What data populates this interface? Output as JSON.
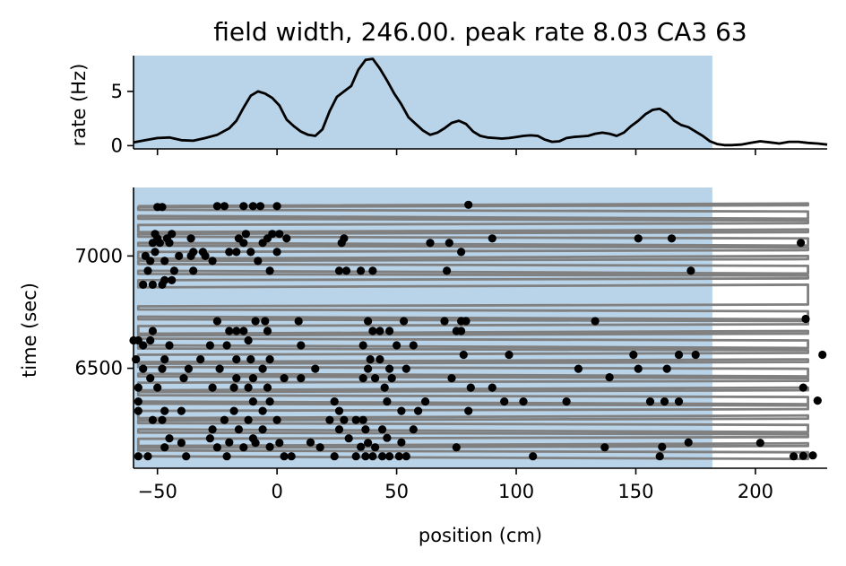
{
  "chart_data": [
    {
      "type": "line",
      "panel": "rate",
      "title": "field width, 246.00. peak rate 8.03 CA3 63",
      "xlabel": "",
      "ylabel": "rate (Hz)",
      "xlim": [
        -60,
        230
      ],
      "ylim": [
        -0.3,
        8.3
      ],
      "yticks": [
        0,
        5
      ],
      "xticks": [
        -50,
        0,
        50,
        100,
        150,
        200
      ],
      "field_span": [
        -60,
        182
      ],
      "field_color": "#b9d3e8",
      "line_color": "#000000",
      "series": [
        {
          "name": "rate",
          "x": [
            -60,
            -55,
            -50,
            -45,
            -40,
            -35,
            -30,
            -25,
            -20,
            -17,
            -14,
            -11,
            -8,
            -5,
            -2,
            1,
            4,
            7,
            10,
            13,
            16,
            19,
            22,
            25,
            28,
            31,
            34,
            37,
            40,
            43,
            46,
            49,
            52,
            55,
            58,
            61,
            64,
            67,
            70,
            73,
            76,
            79,
            82,
            85,
            88,
            91,
            94,
            97,
            100,
            103,
            106,
            109,
            112,
            115,
            118,
            121,
            124,
            127,
            130,
            133,
            136,
            139,
            142,
            145,
            148,
            151,
            154,
            157,
            160,
            163,
            166,
            169,
            172,
            175,
            178,
            181,
            184,
            187,
            190,
            194,
            198,
            202,
            206,
            210,
            214,
            218,
            222,
            226,
            230
          ],
          "values": [
            0.3,
            0.5,
            0.7,
            0.75,
            0.5,
            0.45,
            0.7,
            1.0,
            1.6,
            2.3,
            3.5,
            4.6,
            5.0,
            4.8,
            4.4,
            3.7,
            2.4,
            1.8,
            1.3,
            1.0,
            0.9,
            1.5,
            3.2,
            4.5,
            5.0,
            5.5,
            7.0,
            7.9,
            8.0,
            7.1,
            6.0,
            4.8,
            3.8,
            2.6,
            2.0,
            1.4,
            1.0,
            1.2,
            1.6,
            2.1,
            2.3,
            2.0,
            1.3,
            0.9,
            0.75,
            0.7,
            0.65,
            0.7,
            0.8,
            0.9,
            0.95,
            0.9,
            0.55,
            0.35,
            0.4,
            0.7,
            0.8,
            0.85,
            0.9,
            1.1,
            1.2,
            1.1,
            0.9,
            1.2,
            1.8,
            2.3,
            2.9,
            3.3,
            3.4,
            3.0,
            2.3,
            1.9,
            1.7,
            1.3,
            0.9,
            0.4,
            0.15,
            0.05,
            0.05,
            0.1,
            0.25,
            0.4,
            0.3,
            0.2,
            0.35,
            0.35,
            0.25,
            0.2,
            0.1
          ]
        }
      ]
    },
    {
      "type": "scatter",
      "panel": "raster",
      "title": "",
      "xlabel": "position (cm)",
      "ylabel": "time (sec)",
      "xlim": [
        -60,
        230
      ],
      "ylim": [
        6055,
        7305
      ],
      "xticks": [
        -50,
        0,
        50,
        100,
        150,
        200
      ],
      "xtick_labels": [
        "−50",
        "0",
        "50",
        "100",
        "150",
        "200"
      ],
      "yticks": [
        6500,
        7000
      ],
      "field_span": [
        -60,
        182
      ],
      "field_color": "#b9d3e8",
      "trajectory_color": "#808080",
      "spike_color": "#000000",
      "lap_times": [
        6108,
        6126,
        6146,
        6166,
        6186,
        6206,
        6228,
        6248,
        6268,
        6290,
        6310,
        6334,
        6352,
        6372,
        6394,
        6414,
        6436,
        6456,
        6476,
        6498,
        6520,
        6540,
        6560,
        6580,
        6602,
        6624,
        6646,
        6666,
        6688,
        6710,
        6730,
        6754,
        6776,
        6872,
        6892,
        6912,
        6934,
        6956,
        6978,
        7000,
        7018,
        7038,
        7058,
        7078,
        7098,
        7118,
        7138,
        7158,
        7178,
        7198,
        7218,
        7234
      ],
      "spikes": [
        {
          "x": -58,
          "y": 6108
        },
        {
          "x": -54,
          "y": 6108
        },
        {
          "x": -38,
          "y": 6108
        },
        {
          "x": -21,
          "y": 6108
        },
        {
          "x": 3,
          "y": 6108
        },
        {
          "x": 6,
          "y": 6108
        },
        {
          "x": 24,
          "y": 6108
        },
        {
          "x": 33,
          "y": 6108
        },
        {
          "x": 37,
          "y": 6108
        },
        {
          "x": 40,
          "y": 6108
        },
        {
          "x": 44,
          "y": 6108
        },
        {
          "x": 47,
          "y": 6108
        },
        {
          "x": 51,
          "y": 6108
        },
        {
          "x": 54,
          "y": 6108
        },
        {
          "x": 107,
          "y": 6108
        },
        {
          "x": 160,
          "y": 6108
        },
        {
          "x": 216,
          "y": 6108
        },
        {
          "x": 220,
          "y": 6110
        },
        {
          "x": 224,
          "y": 6112
        },
        {
          "x": -47,
          "y": 6148
        },
        {
          "x": -25,
          "y": 6148
        },
        {
          "x": -14,
          "y": 6148
        },
        {
          "x": -3,
          "y": 6150
        },
        {
          "x": 18,
          "y": 6148
        },
        {
          "x": 35,
          "y": 6150
        },
        {
          "x": 41,
          "y": 6148
        },
        {
          "x": 75,
          "y": 6148
        },
        {
          "x": 137,
          "y": 6148
        },
        {
          "x": 161,
          "y": 6150
        },
        {
          "x": -40,
          "y": 6168
        },
        {
          "x": -20,
          "y": 6170
        },
        {
          "x": -9,
          "y": 6168
        },
        {
          "x": 1,
          "y": 6168
        },
        {
          "x": 14,
          "y": 6170
        },
        {
          "x": 38,
          "y": 6168
        },
        {
          "x": 52,
          "y": 6170
        },
        {
          "x": 172,
          "y": 6170
        },
        {
          "x": 202,
          "y": 6168
        },
        {
          "x": -45,
          "y": 6188
        },
        {
          "x": -28,
          "y": 6188
        },
        {
          "x": -10,
          "y": 6188
        },
        {
          "x": 30,
          "y": 6188
        },
        {
          "x": 46,
          "y": 6190
        },
        {
          "x": -27,
          "y": 6228
        },
        {
          "x": -16,
          "y": 6228
        },
        {
          "x": -6,
          "y": 6228
        },
        {
          "x": 26,
          "y": 6228
        },
        {
          "x": 37,
          "y": 6228
        },
        {
          "x": 44,
          "y": 6228
        },
        {
          "x": 57,
          "y": 6228
        },
        {
          "x": -52,
          "y": 6270
        },
        {
          "x": -48,
          "y": 6270
        },
        {
          "x": -22,
          "y": 6270
        },
        {
          "x": -12,
          "y": 6270
        },
        {
          "x": 0,
          "y": 6270
        },
        {
          "x": 22,
          "y": 6270
        },
        {
          "x": 28,
          "y": 6270
        },
        {
          "x": 33,
          "y": 6270
        },
        {
          "x": 36,
          "y": 6270
        },
        {
          "x": -58,
          "y": 6310
        },
        {
          "x": -47,
          "y": 6310
        },
        {
          "x": -40,
          "y": 6310
        },
        {
          "x": -18,
          "y": 6310
        },
        {
          "x": -6,
          "y": 6310
        },
        {
          "x": 26,
          "y": 6310
        },
        {
          "x": 52,
          "y": 6310
        },
        {
          "x": 59,
          "y": 6310
        },
        {
          "x": 80,
          "y": 6310
        },
        {
          "x": -58,
          "y": 6352
        },
        {
          "x": -10,
          "y": 6352
        },
        {
          "x": -3,
          "y": 6352
        },
        {
          "x": 24,
          "y": 6352
        },
        {
          "x": 46,
          "y": 6352
        },
        {
          "x": 62,
          "y": 6352
        },
        {
          "x": 95,
          "y": 6352
        },
        {
          "x": 103,
          "y": 6352
        },
        {
          "x": 121,
          "y": 6352
        },
        {
          "x": 156,
          "y": 6352
        },
        {
          "x": 162,
          "y": 6352
        },
        {
          "x": 168,
          "y": 6352
        },
        {
          "x": 226,
          "y": 6356
        },
        {
          "x": -58,
          "y": 6414
        },
        {
          "x": -50,
          "y": 6414
        },
        {
          "x": -27,
          "y": 6414
        },
        {
          "x": -18,
          "y": 6414
        },
        {
          "x": -12,
          "y": 6414
        },
        {
          "x": -4,
          "y": 6414
        },
        {
          "x": 45,
          "y": 6414
        },
        {
          "x": 81,
          "y": 6414
        },
        {
          "x": 90,
          "y": 6414
        },
        {
          "x": 220,
          "y": 6414
        },
        {
          "x": -53,
          "y": 6456
        },
        {
          "x": -39,
          "y": 6456
        },
        {
          "x": -17,
          "y": 6456
        },
        {
          "x": -10,
          "y": 6456
        },
        {
          "x": 3,
          "y": 6456
        },
        {
          "x": 10,
          "y": 6456
        },
        {
          "x": 36,
          "y": 6456
        },
        {
          "x": 41,
          "y": 6456
        },
        {
          "x": 48,
          "y": 6456
        },
        {
          "x": 73,
          "y": 6456
        },
        {
          "x": 139,
          "y": 6460
        },
        {
          "x": -56,
          "y": 6498
        },
        {
          "x": -48,
          "y": 6498
        },
        {
          "x": -37,
          "y": 6498
        },
        {
          "x": -24,
          "y": 6498
        },
        {
          "x": -6,
          "y": 6498
        },
        {
          "x": 16,
          "y": 6498
        },
        {
          "x": 38,
          "y": 6498
        },
        {
          "x": 47,
          "y": 6498
        },
        {
          "x": 54,
          "y": 6498
        },
        {
          "x": 126,
          "y": 6498
        },
        {
          "x": 151,
          "y": 6498
        },
        {
          "x": 163,
          "y": 6498
        },
        {
          "x": -59,
          "y": 6540
        },
        {
          "x": -47,
          "y": 6540
        },
        {
          "x": -32,
          "y": 6540
        },
        {
          "x": -17,
          "y": 6540
        },
        {
          "x": -11,
          "y": 6540
        },
        {
          "x": -3,
          "y": 6540
        },
        {
          "x": 39,
          "y": 6540
        },
        {
          "x": 43,
          "y": 6540
        },
        {
          "x": 78,
          "y": 6560
        },
        {
          "x": 97,
          "y": 6560
        },
        {
          "x": 149,
          "y": 6560
        },
        {
          "x": 168,
          "y": 6560
        },
        {
          "x": 175,
          "y": 6560
        },
        {
          "x": 228,
          "y": 6560
        },
        {
          "x": -56,
          "y": 6602
        },
        {
          "x": -45,
          "y": 6602
        },
        {
          "x": -28,
          "y": 6602
        },
        {
          "x": -21,
          "y": 6602
        },
        {
          "x": 10,
          "y": 6602
        },
        {
          "x": 36,
          "y": 6602
        },
        {
          "x": 50,
          "y": 6602
        },
        {
          "x": 57,
          "y": 6602
        },
        {
          "x": -60,
          "y": 6624
        },
        {
          "x": -58,
          "y": 6624
        },
        {
          "x": -53,
          "y": 6624
        },
        {
          "x": -12,
          "y": 6624
        },
        {
          "x": -52,
          "y": 6666
        },
        {
          "x": -20,
          "y": 6666
        },
        {
          "x": -17,
          "y": 6666
        },
        {
          "x": -14,
          "y": 6666
        },
        {
          "x": -4,
          "y": 6666
        },
        {
          "x": 40,
          "y": 6666
        },
        {
          "x": 43,
          "y": 6666
        },
        {
          "x": 47,
          "y": 6666
        },
        {
          "x": 75,
          "y": 6666
        },
        {
          "x": 77,
          "y": 6666
        },
        {
          "x": -25,
          "y": 6710
        },
        {
          "x": -9,
          "y": 6710
        },
        {
          "x": -5,
          "y": 6710
        },
        {
          "x": 9,
          "y": 6710
        },
        {
          "x": 38,
          "y": 6710
        },
        {
          "x": 53,
          "y": 6710
        },
        {
          "x": 70,
          "y": 6710
        },
        {
          "x": 77,
          "y": 6710
        },
        {
          "x": 79,
          "y": 6710
        },
        {
          "x": 133,
          "y": 6710
        },
        {
          "x": 221,
          "y": 6720
        },
        {
          "x": -56,
          "y": 6872
        },
        {
          "x": -52,
          "y": 6872
        },
        {
          "x": -48,
          "y": 6872
        },
        {
          "x": -44,
          "y": 6892
        },
        {
          "x": -47,
          "y": 6892
        },
        {
          "x": -54,
          "y": 6934
        },
        {
          "x": -43,
          "y": 6934
        },
        {
          "x": -35,
          "y": 6934
        },
        {
          "x": -3,
          "y": 6934
        },
        {
          "x": 26,
          "y": 6934
        },
        {
          "x": 29,
          "y": 6934
        },
        {
          "x": 35,
          "y": 6934
        },
        {
          "x": 40,
          "y": 6934
        },
        {
          "x": 71,
          "y": 6934
        },
        {
          "x": 173,
          "y": 6934
        },
        {
          "x": -53,
          "y": 6978
        },
        {
          "x": -47,
          "y": 6978
        },
        {
          "x": -27,
          "y": 6978
        },
        {
          "x": -8,
          "y": 6978
        },
        {
          "x": -55,
          "y": 7000
        },
        {
          "x": -41,
          "y": 7000
        },
        {
          "x": -36,
          "y": 7000
        },
        {
          "x": -30,
          "y": 7000
        },
        {
          "x": -51,
          "y": 7018
        },
        {
          "x": -35,
          "y": 7018
        },
        {
          "x": -31,
          "y": 7018
        },
        {
          "x": -20,
          "y": 7018
        },
        {
          "x": -17,
          "y": 7018
        },
        {
          "x": -11,
          "y": 7018
        },
        {
          "x": 0,
          "y": 7018
        },
        {
          "x": 77,
          "y": 7018
        },
        {
          "x": -52,
          "y": 7058
        },
        {
          "x": -49,
          "y": 7058
        },
        {
          "x": -45,
          "y": 7058
        },
        {
          "x": -14,
          "y": 7058
        },
        {
          "x": -6,
          "y": 7058
        },
        {
          "x": 27,
          "y": 7058
        },
        {
          "x": 64,
          "y": 7058
        },
        {
          "x": 72,
          "y": 7058
        },
        {
          "x": 219,
          "y": 7058
        },
        {
          "x": -50,
          "y": 7078
        },
        {
          "x": -46,
          "y": 7078
        },
        {
          "x": -36,
          "y": 7078
        },
        {
          "x": -16,
          "y": 7078
        },
        {
          "x": -4,
          "y": 7078
        },
        {
          "x": 4,
          "y": 7078
        },
        {
          "x": 28,
          "y": 7078
        },
        {
          "x": 90,
          "y": 7078
        },
        {
          "x": 151,
          "y": 7078
        },
        {
          "x": 165,
          "y": 7078
        },
        {
          "x": -51,
          "y": 7098
        },
        {
          "x": -44,
          "y": 7098
        },
        {
          "x": -13,
          "y": 7098
        },
        {
          "x": -2,
          "y": 7098
        },
        {
          "x": 1,
          "y": 7098
        },
        {
          "x": -50,
          "y": 7218
        },
        {
          "x": -48,
          "y": 7218
        },
        {
          "x": -25,
          "y": 7222
        },
        {
          "x": -22,
          "y": 7222
        },
        {
          "x": -14,
          "y": 7222
        },
        {
          "x": -10,
          "y": 7222
        },
        {
          "x": -7,
          "y": 7222
        },
        {
          "x": 0,
          "y": 7222
        },
        {
          "x": 80,
          "y": 7228
        }
      ]
    }
  ]
}
